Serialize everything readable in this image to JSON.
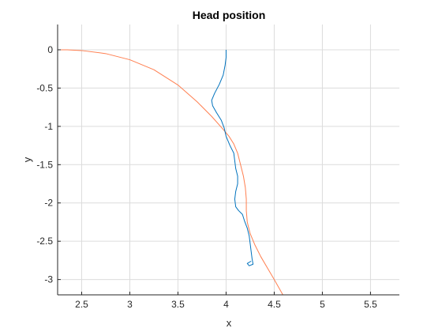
{
  "chart_data": {
    "type": "line",
    "title": "Head  position",
    "xlabel": "x",
    "ylabel": "y",
    "xlim": [
      2.25,
      5.8
    ],
    "ylim": [
      -3.2,
      0.33
    ],
    "xticks": [
      2.5,
      3,
      3.5,
      4,
      4.5,
      5,
      5.5
    ],
    "xtick_labels": [
      "2.5",
      "3",
      "3.5",
      "4",
      "4.5",
      "5",
      "5.5"
    ],
    "yticks": [
      0,
      -0.5,
      -1,
      -1.5,
      -2,
      -2.5,
      -3
    ],
    "ytick_labels": [
      "0",
      "-0.5",
      "-1",
      "-1.5",
      "-2",
      "-2.5",
      "-3"
    ],
    "grid": true,
    "series": [
      {
        "color": "#ff7f50",
        "points": [
          [
            2.25,
            0.0
          ],
          [
            2.35,
            0.0
          ],
          [
            2.5,
            -0.01
          ],
          [
            2.75,
            -0.05
          ],
          [
            3.0,
            -0.13
          ],
          [
            3.25,
            -0.26
          ],
          [
            3.5,
            -0.46
          ],
          [
            3.7,
            -0.68
          ],
          [
            3.85,
            -0.87
          ],
          [
            3.97,
            -1.04
          ],
          [
            4.03,
            -1.13
          ],
          [
            4.08,
            -1.23
          ],
          [
            4.12,
            -1.35
          ],
          [
            4.15,
            -1.5
          ],
          [
            4.18,
            -1.65
          ],
          [
            4.2,
            -1.8
          ],
          [
            4.21,
            -1.95
          ],
          [
            4.21,
            -2.1
          ],
          [
            4.22,
            -2.25
          ],
          [
            4.25,
            -2.4
          ],
          [
            4.3,
            -2.55
          ],
          [
            4.36,
            -2.7
          ],
          [
            4.43,
            -2.85
          ],
          [
            4.5,
            -3.0
          ],
          [
            4.59,
            -3.2
          ]
        ]
      },
      {
        "color": "#0072bd",
        "points": [
          [
            4.0,
            0.0
          ],
          [
            4.0,
            -0.1
          ],
          [
            3.99,
            -0.2
          ],
          [
            3.97,
            -0.33
          ],
          [
            3.93,
            -0.45
          ],
          [
            3.88,
            -0.57
          ],
          [
            3.85,
            -0.66
          ],
          [
            3.86,
            -0.73
          ],
          [
            3.9,
            -0.82
          ],
          [
            3.95,
            -0.92
          ],
          [
            3.98,
            -1.02
          ],
          [
            4.0,
            -1.13
          ],
          [
            4.04,
            -1.25
          ],
          [
            4.08,
            -1.35
          ],
          [
            4.09,
            -1.45
          ],
          [
            4.1,
            -1.55
          ],
          [
            4.12,
            -1.65
          ],
          [
            4.12,
            -1.75
          ],
          [
            4.1,
            -1.85
          ],
          [
            4.09,
            -1.95
          ],
          [
            4.1,
            -2.05
          ],
          [
            4.13,
            -2.1
          ],
          [
            4.17,
            -2.15
          ],
          [
            4.19,
            -2.23
          ],
          [
            4.22,
            -2.33
          ],
          [
            4.24,
            -2.43
          ],
          [
            4.25,
            -2.53
          ],
          [
            4.26,
            -2.63
          ],
          [
            4.27,
            -2.73
          ],
          [
            4.28,
            -2.8
          ],
          [
            4.24,
            -2.82
          ],
          [
            4.22,
            -2.79
          ],
          [
            4.26,
            -2.76
          ]
        ]
      }
    ]
  }
}
